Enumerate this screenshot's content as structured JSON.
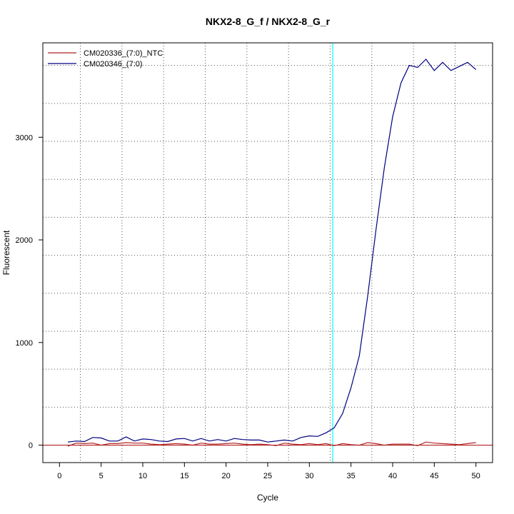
{
  "chart_data": {
    "type": "line",
    "title": "NKX2-8_G_f / NKX2-8_G_r",
    "xlabel": "Cycle",
    "ylabel": "Fluorescent",
    "xlim": [
      -2,
      52
    ],
    "ylim": [
      -170,
      3920
    ],
    "x_ticks": [
      0,
      5,
      10,
      15,
      20,
      25,
      30,
      35,
      40,
      45,
      50
    ],
    "y_ticks": [
      0,
      1000,
      2000,
      3000
    ],
    "x_grid": [
      2.5,
      7.5,
      12.5,
      17.5,
      22.5,
      27.5,
      32.5,
      37.5,
      42.5,
      47.5
    ],
    "y_grid": [
      0,
      370,
      740,
      1110,
      1480,
      1850,
      2220,
      2590,
      2960,
      3330,
      3700
    ],
    "grid": true,
    "threshold_x": 32.8,
    "threshold_color": "#00ffff",
    "baseline_y": 0,
    "baseline_color": "#b22222",
    "legend_position": "top-left",
    "x": [
      1,
      2,
      3,
      4,
      5,
      6,
      7,
      8,
      9,
      10,
      11,
      12,
      13,
      14,
      15,
      16,
      17,
      18,
      19,
      20,
      21,
      22,
      23,
      24,
      25,
      26,
      27,
      28,
      29,
      30,
      31,
      32,
      33,
      34,
      35,
      36,
      37,
      38,
      39,
      40,
      41,
      42,
      43,
      44,
      45,
      46,
      47,
      48,
      49,
      50
    ],
    "series": [
      {
        "name": "CM020336_(7:0)_NTC",
        "color": "#b22222",
        "values": [
          -10,
          20,
          15,
          20,
          0,
          15,
          15,
          25,
          20,
          20,
          10,
          5,
          10,
          15,
          10,
          0,
          20,
          10,
          10,
          15,
          20,
          10,
          5,
          10,
          5,
          -5,
          20,
          10,
          5,
          15,
          5,
          15,
          -5,
          15,
          5,
          0,
          25,
          15,
          0,
          10,
          10,
          10,
          -5,
          30,
          20,
          15,
          10,
          5,
          15,
          25
        ]
      },
      {
        "name": "CM020346_(7:0)",
        "color": "#000080",
        "values": [
          30,
          40,
          35,
          75,
          70,
          40,
          40,
          80,
          40,
          60,
          55,
          40,
          35,
          60,
          65,
          40,
          65,
          40,
          55,
          40,
          65,
          55,
          50,
          50,
          30,
          40,
          50,
          40,
          75,
          90,
          85,
          120,
          170,
          310,
          560,
          870,
          1450,
          2100,
          2700,
          3200,
          3530,
          3700,
          3680,
          3760,
          3650,
          3730,
          3650,
          3690,
          3730,
          3660
        ]
      }
    ]
  }
}
